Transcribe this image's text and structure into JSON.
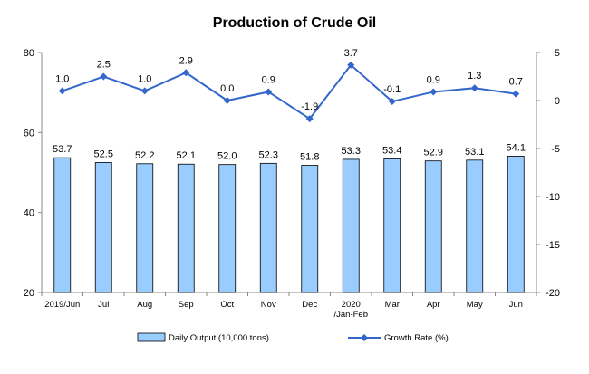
{
  "chart_data": {
    "type": "bar+line",
    "title": "Production of Crude Oil",
    "categories": [
      [
        "2019/Jun"
      ],
      [
        "Jul"
      ],
      [
        "Aug"
      ],
      [
        "Sep"
      ],
      [
        "Oct"
      ],
      [
        "Nov"
      ],
      [
        "Dec"
      ],
      [
        "2020",
        "/Jan-Feb"
      ],
      [
        "Mar"
      ],
      [
        "Apr"
      ],
      [
        "May"
      ],
      [
        "Jun"
      ]
    ],
    "series": [
      {
        "name": "Daily Output (10,000 tons)",
        "type": "bar",
        "axis": "left",
        "color": "#99ccff",
        "values": [
          53.7,
          52.5,
          52.2,
          52.1,
          52.0,
          52.3,
          51.8,
          53.3,
          53.4,
          52.9,
          53.1,
          54.1
        ],
        "labels": [
          "53.7",
          "52.5",
          "52.2",
          "52.1",
          "52.0",
          "52.3",
          "51.8",
          "53.3",
          "53.4",
          "52.9",
          "53.1",
          "54.1"
        ]
      },
      {
        "name": "Growth Rate (%)",
        "type": "line",
        "axis": "right",
        "color": "#3366cc",
        "values": [
          1.0,
          2.5,
          1.0,
          2.9,
          0.0,
          0.9,
          -1.9,
          3.7,
          -0.1,
          0.9,
          1.3,
          0.7
        ],
        "labels": [
          "1.0",
          "2.5",
          "1.0",
          "2.9",
          "0.0",
          "0.9",
          "-1.9",
          "3.7",
          "-0.1",
          "0.9",
          "1.3",
          "0.7"
        ]
      }
    ],
    "y_left": {
      "min": 20,
      "max": 80,
      "ticks": [
        "20",
        "40",
        "60",
        "80"
      ]
    },
    "y_right": {
      "min": -20,
      "max": 5,
      "ticks": [
        "-20",
        "-15",
        "-10",
        "-5",
        "0",
        "5"
      ]
    },
    "grid": false,
    "legend_position": "bottom"
  }
}
